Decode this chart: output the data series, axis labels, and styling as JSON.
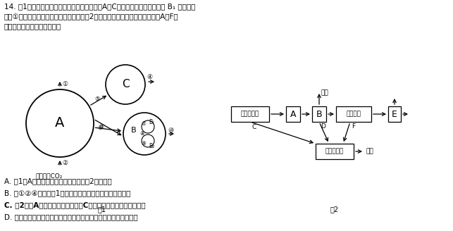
{
  "bg_color": "#ffffff",
  "text_color": "#000000",
  "title_lines": [
    "14. 图1为某森林生态系统的部分结构和功能，A～C代表某些生物成分，其中 B₁ 为食草动",
    "物，①～⑯代表碳元素流动的相应过程。图2表示松毛虫攝入能量的流动方向，A～F代",
    "表能量値。下列说法正确的是"
  ],
  "options": [
    "A. 图1中A代表生产者，该生态系统共有2条食物链",
    "B. 除①②④⑯外，图1中的碳元素以含碳有机物的形式流动",
    "C. 图2中，A代表松毛虫的同化量，C代表松毛虫流入分解者的能量",
    "D. 引入灰喜鹊来控制松毛虫危害可提高该生态系统的能量传递效率"
  ]
}
